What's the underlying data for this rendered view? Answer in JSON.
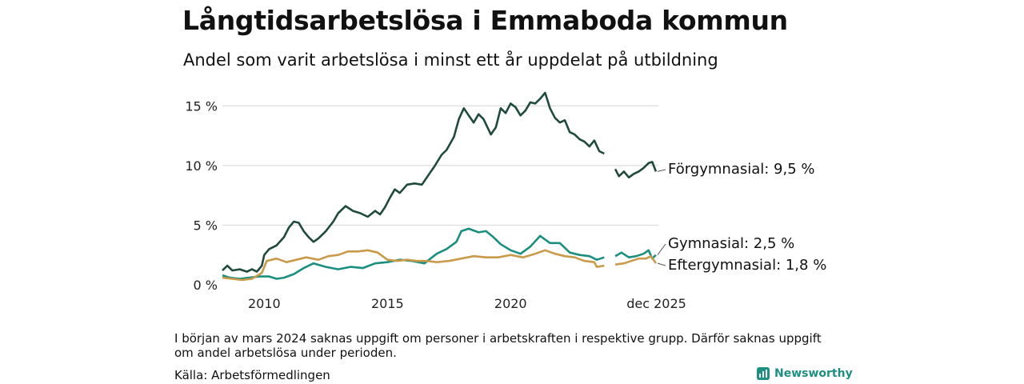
{
  "header": {
    "title": "Långtidsarbetslösa i Emmaboda kommun",
    "subtitle": "Andel som varit arbetslösa i minst ett år uppdelat på utbildning"
  },
  "footer": {
    "note": "I början av mars 2024 saknas uppgift om personer i arbetskraften i respektive grupp. Därför saknas uppgift om andel arbetslösa under perioden.",
    "source": "Källa: Arbetsförmedlingen",
    "brand": "Newsworthy",
    "brand_icon": "bar-chart-logo-icon",
    "brand_color": "#1e8f83"
  },
  "chart_data": {
    "type": "line",
    "title": "Långtidsarbetslösa i Emmaboda kommun",
    "subtitle": "Andel som varit arbetslösa i minst ett år uppdelat på utbildning",
    "xlabel": "",
    "ylabel": "",
    "xlim": [
      2008.3,
      2026.0
    ],
    "ylim": [
      0,
      16.5
    ],
    "yticks": [
      {
        "value": 0,
        "label": "0 %"
      },
      {
        "value": 5,
        "label": "5 %"
      },
      {
        "value": 10,
        "label": "10 %"
      },
      {
        "value": 15,
        "label": "15 %"
      }
    ],
    "xticks": [
      {
        "value": 2010,
        "label": "2010"
      },
      {
        "value": 2015,
        "label": "2015"
      },
      {
        "value": 2020,
        "label": "2020"
      },
      {
        "value": 2025.92,
        "label": "dec 2025"
      }
    ],
    "grid": true,
    "gap": [
      2023.9,
      2024.2
    ],
    "series": [
      {
        "name": "Förgymnasial",
        "end_label": "Förgymnasial: 9,5 %",
        "color": "#1f4a3e",
        "points": [
          [
            2008.3,
            1.2
          ],
          [
            2008.5,
            1.6
          ],
          [
            2008.7,
            1.2
          ],
          [
            2009.0,
            1.3
          ],
          [
            2009.3,
            1.1
          ],
          [
            2009.5,
            1.3
          ],
          [
            2009.7,
            1.1
          ],
          [
            2009.9,
            1.6
          ],
          [
            2010.0,
            2.5
          ],
          [
            2010.2,
            3.0
          ],
          [
            2010.5,
            3.3
          ],
          [
            2010.8,
            4.0
          ],
          [
            2011.0,
            4.8
          ],
          [
            2011.2,
            5.3
          ],
          [
            2011.4,
            5.2
          ],
          [
            2011.6,
            4.5
          ],
          [
            2011.8,
            4.0
          ],
          [
            2012.0,
            3.6
          ],
          [
            2012.2,
            3.9
          ],
          [
            2012.5,
            4.5
          ],
          [
            2012.8,
            5.3
          ],
          [
            2013.0,
            6.0
          ],
          [
            2013.3,
            6.6
          ],
          [
            2013.6,
            6.2
          ],
          [
            2013.9,
            6.0
          ],
          [
            2014.2,
            5.7
          ],
          [
            2014.5,
            6.2
          ],
          [
            2014.7,
            5.9
          ],
          [
            2014.9,
            6.5
          ],
          [
            2015.1,
            7.3
          ],
          [
            2015.3,
            8.0
          ],
          [
            2015.5,
            7.7
          ],
          [
            2015.8,
            8.4
          ],
          [
            2016.1,
            8.5
          ],
          [
            2016.4,
            8.4
          ],
          [
            2016.7,
            9.3
          ],
          [
            2016.9,
            9.9
          ],
          [
            2017.2,
            10.9
          ],
          [
            2017.4,
            11.3
          ],
          [
            2017.7,
            12.4
          ],
          [
            2017.9,
            13.9
          ],
          [
            2018.1,
            14.8
          ],
          [
            2018.3,
            14.2
          ],
          [
            2018.5,
            13.6
          ],
          [
            2018.7,
            14.3
          ],
          [
            2018.9,
            13.9
          ],
          [
            2019.2,
            12.6
          ],
          [
            2019.4,
            13.2
          ],
          [
            2019.6,
            14.8
          ],
          [
            2019.8,
            14.4
          ],
          [
            2020.0,
            15.2
          ],
          [
            2020.2,
            14.9
          ],
          [
            2020.4,
            14.2
          ],
          [
            2020.6,
            14.6
          ],
          [
            2020.8,
            15.3
          ],
          [
            2021.0,
            15.2
          ],
          [
            2021.2,
            15.6
          ],
          [
            2021.4,
            16.1
          ],
          [
            2021.6,
            14.8
          ],
          [
            2021.8,
            14.0
          ],
          [
            2022.0,
            13.6
          ],
          [
            2022.2,
            13.8
          ],
          [
            2022.4,
            12.8
          ],
          [
            2022.6,
            12.6
          ],
          [
            2022.8,
            12.2
          ],
          [
            2023.0,
            12.0
          ],
          [
            2023.2,
            11.6
          ],
          [
            2023.4,
            12.1
          ],
          [
            2023.6,
            11.2
          ],
          [
            2023.8,
            11.0
          ],
          [
            2024.25,
            9.7
          ],
          [
            2024.4,
            9.1
          ],
          [
            2024.6,
            9.5
          ],
          [
            2024.8,
            9.0
          ],
          [
            2025.0,
            9.3
          ],
          [
            2025.2,
            9.5
          ],
          [
            2025.4,
            9.8
          ],
          [
            2025.6,
            10.2
          ],
          [
            2025.75,
            10.3
          ],
          [
            2025.9,
            9.5
          ]
        ]
      },
      {
        "name": "Gymnasial",
        "end_label": "Gymnasial: 2,5 %",
        "color": "#1a8f80",
        "points": [
          [
            2008.3,
            0.8
          ],
          [
            2008.6,
            0.6
          ],
          [
            2009.0,
            0.5
          ],
          [
            2009.4,
            0.6
          ],
          [
            2009.8,
            0.7
          ],
          [
            2010.2,
            0.7
          ],
          [
            2010.5,
            0.5
          ],
          [
            2010.8,
            0.6
          ],
          [
            2011.2,
            0.9
          ],
          [
            2011.6,
            1.4
          ],
          [
            2012.0,
            1.8
          ],
          [
            2012.5,
            1.5
          ],
          [
            2013.0,
            1.3
          ],
          [
            2013.5,
            1.5
          ],
          [
            2014.0,
            1.4
          ],
          [
            2014.5,
            1.8
          ],
          [
            2015.0,
            1.9
          ],
          [
            2015.5,
            2.1
          ],
          [
            2016.0,
            2.0
          ],
          [
            2016.5,
            1.8
          ],
          [
            2017.0,
            2.6
          ],
          [
            2017.4,
            3.0
          ],
          [
            2017.8,
            3.6
          ],
          [
            2018.0,
            4.5
          ],
          [
            2018.3,
            4.7
          ],
          [
            2018.7,
            4.4
          ],
          [
            2019.0,
            4.5
          ],
          [
            2019.3,
            4.0
          ],
          [
            2019.6,
            3.4
          ],
          [
            2020.0,
            2.9
          ],
          [
            2020.4,
            2.6
          ],
          [
            2020.8,
            3.2
          ],
          [
            2021.2,
            4.1
          ],
          [
            2021.6,
            3.5
          ],
          [
            2022.0,
            3.5
          ],
          [
            2022.4,
            2.7
          ],
          [
            2022.8,
            2.5
          ],
          [
            2023.2,
            2.4
          ],
          [
            2023.5,
            2.1
          ],
          [
            2023.8,
            2.3
          ],
          [
            2024.25,
            2.4
          ],
          [
            2024.5,
            2.7
          ],
          [
            2024.8,
            2.3
          ],
          [
            2025.1,
            2.4
          ],
          [
            2025.4,
            2.6
          ],
          [
            2025.6,
            2.9
          ],
          [
            2025.75,
            2.2
          ],
          [
            2025.9,
            2.5
          ]
        ]
      },
      {
        "name": "Eftergymnasial",
        "end_label": "Eftergymnasial: 1,8 %",
        "color": "#c99a49",
        "points": [
          [
            2008.3,
            0.6
          ],
          [
            2008.7,
            0.5
          ],
          [
            2009.1,
            0.4
          ],
          [
            2009.5,
            0.5
          ],
          [
            2009.9,
            1.0
          ],
          [
            2010.1,
            2.0
          ],
          [
            2010.5,
            2.2
          ],
          [
            2010.9,
            1.9
          ],
          [
            2011.3,
            2.1
          ],
          [
            2011.7,
            2.3
          ],
          [
            2012.2,
            2.1
          ],
          [
            2012.6,
            2.4
          ],
          [
            2013.0,
            2.5
          ],
          [
            2013.4,
            2.8
          ],
          [
            2013.8,
            2.8
          ],
          [
            2014.2,
            2.9
          ],
          [
            2014.6,
            2.7
          ],
          [
            2015.0,
            2.1
          ],
          [
            2015.4,
            2.0
          ],
          [
            2015.8,
            2.1
          ],
          [
            2016.2,
            2.0
          ],
          [
            2016.6,
            2.0
          ],
          [
            2017.0,
            1.9
          ],
          [
            2017.5,
            2.0
          ],
          [
            2018.0,
            2.2
          ],
          [
            2018.5,
            2.4
          ],
          [
            2019.0,
            2.3
          ],
          [
            2019.5,
            2.3
          ],
          [
            2020.0,
            2.5
          ],
          [
            2020.5,
            2.3
          ],
          [
            2021.0,
            2.6
          ],
          [
            2021.4,
            2.9
          ],
          [
            2021.8,
            2.6
          ],
          [
            2022.2,
            2.4
          ],
          [
            2022.6,
            2.3
          ],
          [
            2023.0,
            2.0
          ],
          [
            2023.4,
            1.9
          ],
          [
            2023.5,
            1.5
          ],
          [
            2023.8,
            1.6
          ],
          [
            2024.25,
            1.7
          ],
          [
            2024.6,
            1.8
          ],
          [
            2024.9,
            2.0
          ],
          [
            2025.2,
            2.2
          ],
          [
            2025.5,
            2.2
          ],
          [
            2025.7,
            2.4
          ],
          [
            2025.9,
            1.8
          ]
        ]
      }
    ]
  }
}
